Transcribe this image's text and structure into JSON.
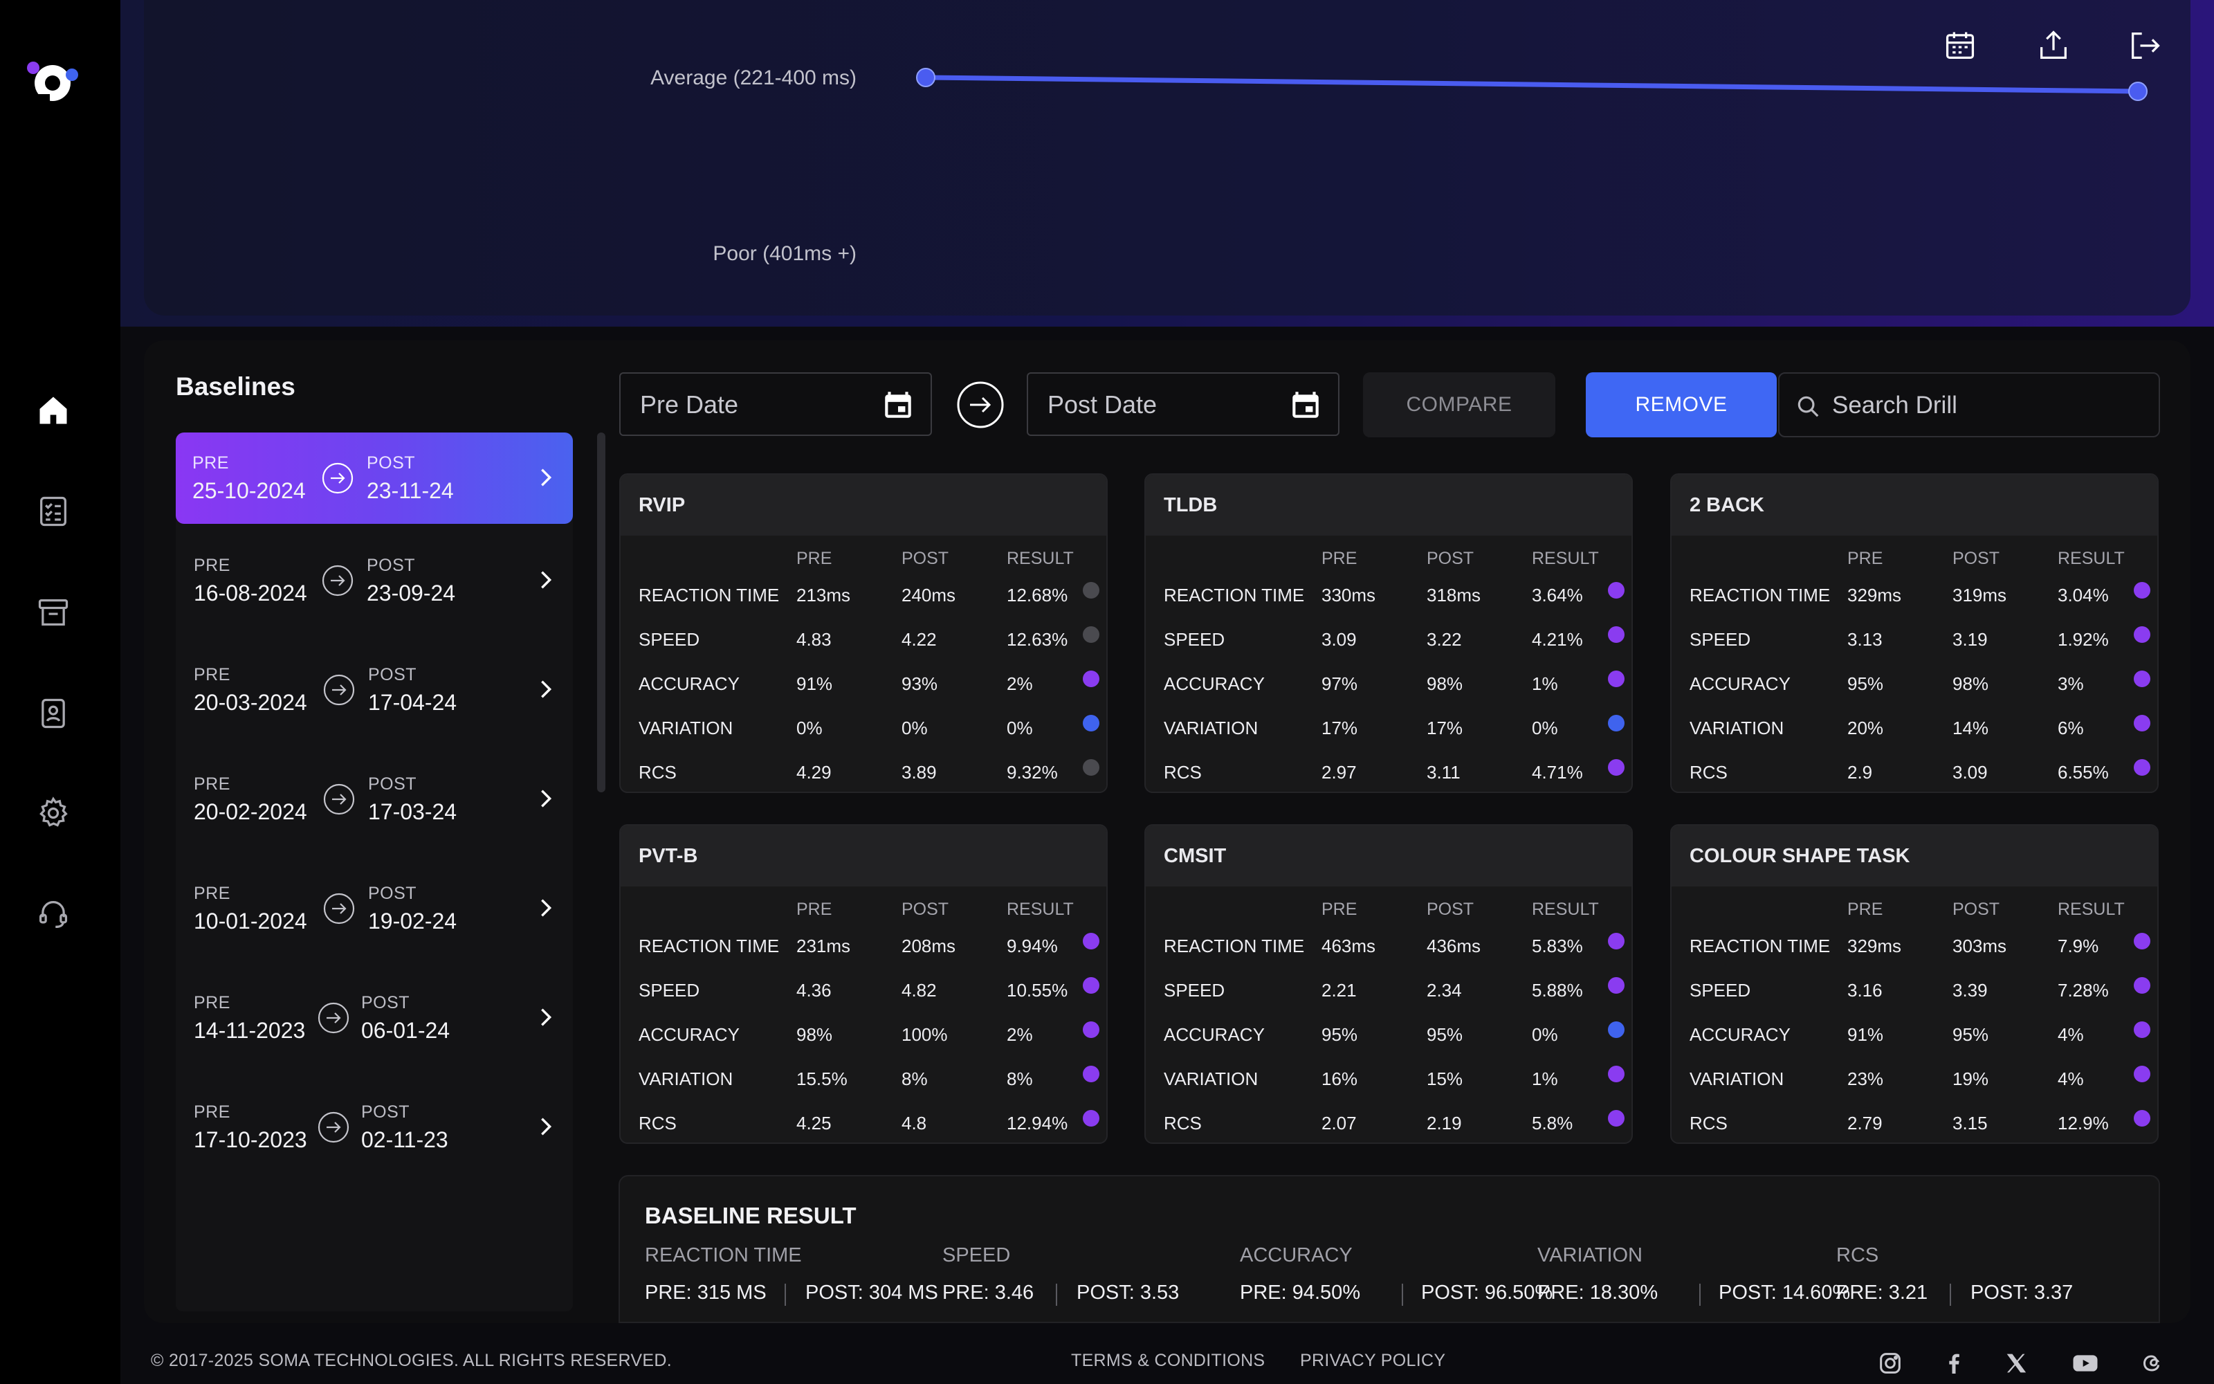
{
  "sidebar": {
    "logo": "soma-logo",
    "items": [
      {
        "name": "home",
        "icon": "home-icon"
      },
      {
        "name": "checklist",
        "icon": "checklist-icon"
      },
      {
        "name": "archive",
        "icon": "archive-icon"
      },
      {
        "name": "profile",
        "icon": "id-card-icon"
      },
      {
        "name": "settings",
        "icon": "gear-icon"
      },
      {
        "name": "support",
        "icon": "headset-icon"
      }
    ]
  },
  "header": {
    "toolbar_icons": [
      "calendar-icon",
      "upload-icon",
      "logout-icon"
    ]
  },
  "chart_data": {
    "type": "line",
    "categories": [
      "Poor (401ms +)",
      "Average (221-400 ms)"
    ],
    "series": [
      {
        "values": [
          "Average (221-400 ms)",
          "Average (221-400 ms)"
        ]
      }
    ],
    "line_color": "#4a5cf0"
  },
  "baselines": {
    "title": "Baselines",
    "pre_label": "PRE",
    "post_label": "POST",
    "items": [
      {
        "pre": "25-10-2024",
        "post": "23-11-24",
        "active": true
      },
      {
        "pre": "16-08-2024",
        "post": "23-09-24"
      },
      {
        "pre": "20-03-2024",
        "post": "17-04-24"
      },
      {
        "pre": "20-02-2024",
        "post": "17-03-24"
      },
      {
        "pre": "10-01-2024",
        "post": "19-02-24"
      },
      {
        "pre": "14-11-2023",
        "post": "06-01-24"
      },
      {
        "pre": "17-10-2023",
        "post": "02-11-23"
      }
    ]
  },
  "filters": {
    "pre_date_placeholder": "Pre Date",
    "post_date_placeholder": "Post Date",
    "compare_label": "COMPARE",
    "remove_label": "REMOVE",
    "search_placeholder": "Search Drill"
  },
  "table_headers": {
    "pre": "PRE",
    "post": "POST",
    "result": "RESULT"
  },
  "colors": {
    "purple": "#8a3cf0",
    "blue": "#3f63ee",
    "gray": "#4a4a4f",
    "accent": "#3f67f4"
  },
  "drills": [
    {
      "name": "RVIP",
      "rows": [
        {
          "metric": "REACTION TIME",
          "pre": "213ms",
          "post": "240ms",
          "result": "12.68%",
          "status": "gray"
        },
        {
          "metric": "SPEED",
          "pre": "4.83",
          "post": "4.22",
          "result": "12.63%",
          "status": "gray"
        },
        {
          "metric": "ACCURACY",
          "pre": "91%",
          "post": "93%",
          "result": "2%",
          "status": "purple"
        },
        {
          "metric": "VARIATION",
          "pre": "0%",
          "post": "0%",
          "result": "0%",
          "status": "blue"
        },
        {
          "metric": "RCS",
          "pre": "4.29",
          "post": "3.89",
          "result": "9.32%",
          "status": "gray"
        }
      ]
    },
    {
      "name": "TLDB",
      "rows": [
        {
          "metric": "REACTION TIME",
          "pre": "330ms",
          "post": "318ms",
          "result": "3.64%",
          "status": "purple"
        },
        {
          "metric": "SPEED",
          "pre": "3.09",
          "post": "3.22",
          "result": "4.21%",
          "status": "purple"
        },
        {
          "metric": "ACCURACY",
          "pre": "97%",
          "post": "98%",
          "result": "1%",
          "status": "purple"
        },
        {
          "metric": "VARIATION",
          "pre": "17%",
          "post": "17%",
          "result": "0%",
          "status": "blue"
        },
        {
          "metric": "RCS",
          "pre": "2.97",
          "post": "3.11",
          "result": "4.71%",
          "status": "purple"
        }
      ]
    },
    {
      "name": "2 BACK",
      "rows": [
        {
          "metric": "REACTION TIME",
          "pre": "329ms",
          "post": "319ms",
          "result": "3.04%",
          "status": "purple"
        },
        {
          "metric": "SPEED",
          "pre": "3.13",
          "post": "3.19",
          "result": "1.92%",
          "status": "purple"
        },
        {
          "metric": "ACCURACY",
          "pre": "95%",
          "post": "98%",
          "result": "3%",
          "status": "purple"
        },
        {
          "metric": "VARIATION",
          "pre": "20%",
          "post": "14%",
          "result": "6%",
          "status": "purple"
        },
        {
          "metric": "RCS",
          "pre": "2.9",
          "post": "3.09",
          "result": "6.55%",
          "status": "purple"
        }
      ]
    },
    {
      "name": "PVT-B",
      "rows": [
        {
          "metric": "REACTION TIME",
          "pre": "231ms",
          "post": "208ms",
          "result": "9.94%",
          "status": "purple"
        },
        {
          "metric": "SPEED",
          "pre": "4.36",
          "post": "4.82",
          "result": "10.55%",
          "status": "purple"
        },
        {
          "metric": "ACCURACY",
          "pre": "98%",
          "post": "100%",
          "result": "2%",
          "status": "purple"
        },
        {
          "metric": "VARIATION",
          "pre": "15.5%",
          "post": "8%",
          "result": "8%",
          "status": "purple"
        },
        {
          "metric": "RCS",
          "pre": "4.25",
          "post": "4.8",
          "result": "12.94%",
          "status": "purple"
        }
      ]
    },
    {
      "name": "CMSIT",
      "rows": [
        {
          "metric": "REACTION TIME",
          "pre": "463ms",
          "post": "436ms",
          "result": "5.83%",
          "status": "purple"
        },
        {
          "metric": "SPEED",
          "pre": "2.21",
          "post": "2.34",
          "result": "5.88%",
          "status": "purple"
        },
        {
          "metric": "ACCURACY",
          "pre": "95%",
          "post": "95%",
          "result": "0%",
          "status": "blue"
        },
        {
          "metric": "VARIATION",
          "pre": "16%",
          "post": "15%",
          "result": "1%",
          "status": "purple"
        },
        {
          "metric": "RCS",
          "pre": "2.07",
          "post": "2.19",
          "result": "5.8%",
          "status": "purple"
        }
      ]
    },
    {
      "name": "COLOUR SHAPE TASK",
      "rows": [
        {
          "metric": "REACTION TIME",
          "pre": "329ms",
          "post": "303ms",
          "result": "7.9%",
          "status": "purple"
        },
        {
          "metric": "SPEED",
          "pre": "3.16",
          "post": "3.39",
          "result": "7.28%",
          "status": "purple"
        },
        {
          "metric": "ACCURACY",
          "pre": "91%",
          "post": "95%",
          "result": "4%",
          "status": "purple"
        },
        {
          "metric": "VARIATION",
          "pre": "23%",
          "post": "19%",
          "result": "4%",
          "status": "purple"
        },
        {
          "metric": "RCS",
          "pre": "2.79",
          "post": "3.15",
          "result": "12.9%",
          "status": "purple"
        }
      ]
    }
  ],
  "baseline_result": {
    "title": "BASELINE RESULT",
    "metrics": [
      {
        "label": "REACTION TIME",
        "pre": "PRE: 315 MS",
        "post": "POST: 304 MS"
      },
      {
        "label": "SPEED",
        "pre": "PRE: 3.46",
        "post": "POST: 3.53"
      },
      {
        "label": "ACCURACY",
        "pre": "PRE: 94.50%",
        "post": "POST: 96.50%"
      },
      {
        "label": "VARIATION",
        "pre": "PRE: 18.30%",
        "post": "POST: 14.60%"
      },
      {
        "label": "RCS",
        "pre": "PRE: 3.21",
        "post": "POST: 3.37"
      }
    ]
  },
  "footer": {
    "copyright": "© 2017-2025 SOMA TECHNOLOGIES. ALL RIGHTS RESERVED.",
    "terms": "TERMS & CONDITIONS",
    "privacy": "PRIVACY POLICY",
    "social": [
      "instagram-icon",
      "facebook-icon",
      "x-icon",
      "youtube-icon",
      "threads-icon"
    ]
  }
}
